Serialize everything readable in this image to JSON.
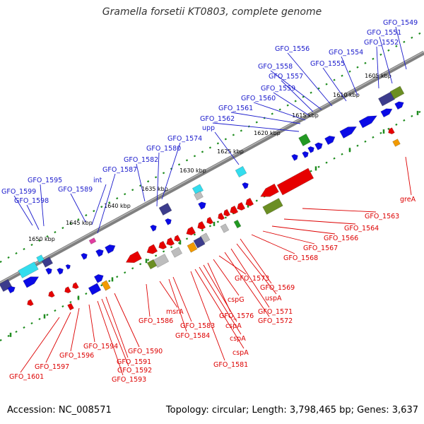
{
  "header": {
    "title": "Gramella forsetii KT0803, complete genome"
  },
  "footer": {
    "accession": "Accession: NC_008571",
    "summary": "Topology: circular; Length: 3,798,465 bp; Genes: 3,637"
  },
  "colors": {
    "forward_label": "#1a1acc",
    "reverse_label": "#dd0000",
    "backbone": "#808080",
    "tick": "#1e8c1e",
    "cds_blue": "#0a0ae6",
    "cds_red": "#e60000",
    "cds_navy": "#3c3c8c",
    "cds_cyan": "#33ddee",
    "cds_olive": "#6b8e23",
    "cds_green": "#229922",
    "cds_orange": "#f29a00",
    "cds_gray": "#bdbdbd",
    "cds_magenta": "#e03ca0"
  },
  "kbp_labels": [
    "1605 kbp",
    "1610 kbp",
    "1615 kbp",
    "1620 kbp",
    "1625 kbp",
    "1630 kbp",
    "1635 kbp",
    "1640 kbp",
    "1645 kbp",
    "1650 kbp"
  ],
  "forward_genes": [
    "GFO_1549",
    "GFO_1551",
    "GFO_1552",
    "GFO_1554",
    "GFO_1555",
    "GFO_1556",
    "GFO_1558",
    "GFO_1557",
    "GFO_1559",
    "GFO_1560",
    "GFO_1561",
    "GFO_1562",
    "upp",
    "GFO_1574",
    "GFO_1580",
    "GFO_1582",
    "GFO_1587",
    "int",
    "GFO_1589",
    "GFO_1595",
    "GFO_1599",
    "GFO_1598"
  ],
  "reverse_genes": [
    "greA",
    "GFO_1563",
    "GFO_1564",
    "GFO_1566",
    "GFO_1567",
    "GFO_1568",
    "GFO_1569",
    "uspA",
    "GFO_1571",
    "GFO_1572",
    "GFO_1573",
    "cspG",
    "GFO_1576",
    "cspA",
    "cspA",
    "cspA",
    "GFO_1581",
    "GFO_1583",
    "GFO_1584",
    "msrA",
    "GFO_1586",
    "GFO_1590",
    "GFO_1591",
    "GFO_1592",
    "GFO_1593",
    "GFO_1594",
    "GFO_1596",
    "GFO_1597",
    "GFO_1601"
  ]
}
